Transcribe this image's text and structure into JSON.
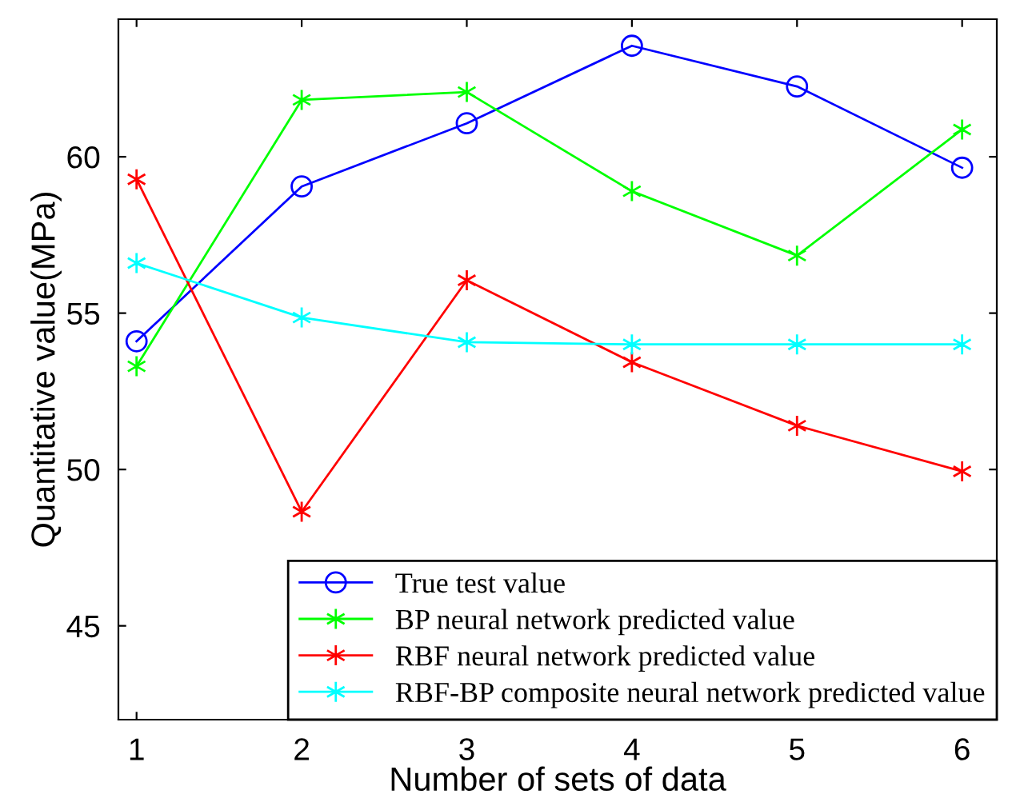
{
  "chart_data": {
    "type": "line",
    "xlabel": "Number of sets of data",
    "ylabel": "Quantitative value(MPa)",
    "x": [
      1,
      2,
      3,
      4,
      5,
      6
    ],
    "xlim": [
      0.89,
      6.21
    ],
    "xticks": [
      1,
      2,
      3,
      4,
      5,
      6
    ],
    "ylim": [
      42,
      64.4
    ],
    "yticks": [
      45,
      50,
      55,
      60
    ],
    "grid": false,
    "legend": "bottom right",
    "line_style": "solid",
    "series": [
      {
        "name": "True test value",
        "color": "#0000ff",
        "marker": "circle",
        "values": [
          54.1,
          59.05,
          61.07,
          63.55,
          62.25,
          59.65
        ]
      },
      {
        "name": "BP neural network predicted value",
        "color": "#00ff00",
        "marker": "cross",
        "values": [
          53.3,
          61.82,
          62.07,
          58.9,
          56.84,
          60.87
        ]
      },
      {
        "name": "RBF neural network predicted value",
        "color": "#ff0000",
        "marker": "cross",
        "values": [
          59.28,
          48.65,
          56.05,
          53.43,
          51.4,
          49.94
        ]
      },
      {
        "name": "RBF-BP composite neural network predicted value",
        "color": "#00ffff",
        "marker": "cross",
        "values": [
          56.6,
          54.86,
          54.07,
          54.0,
          54.0,
          54.0
        ]
      }
    ]
  }
}
